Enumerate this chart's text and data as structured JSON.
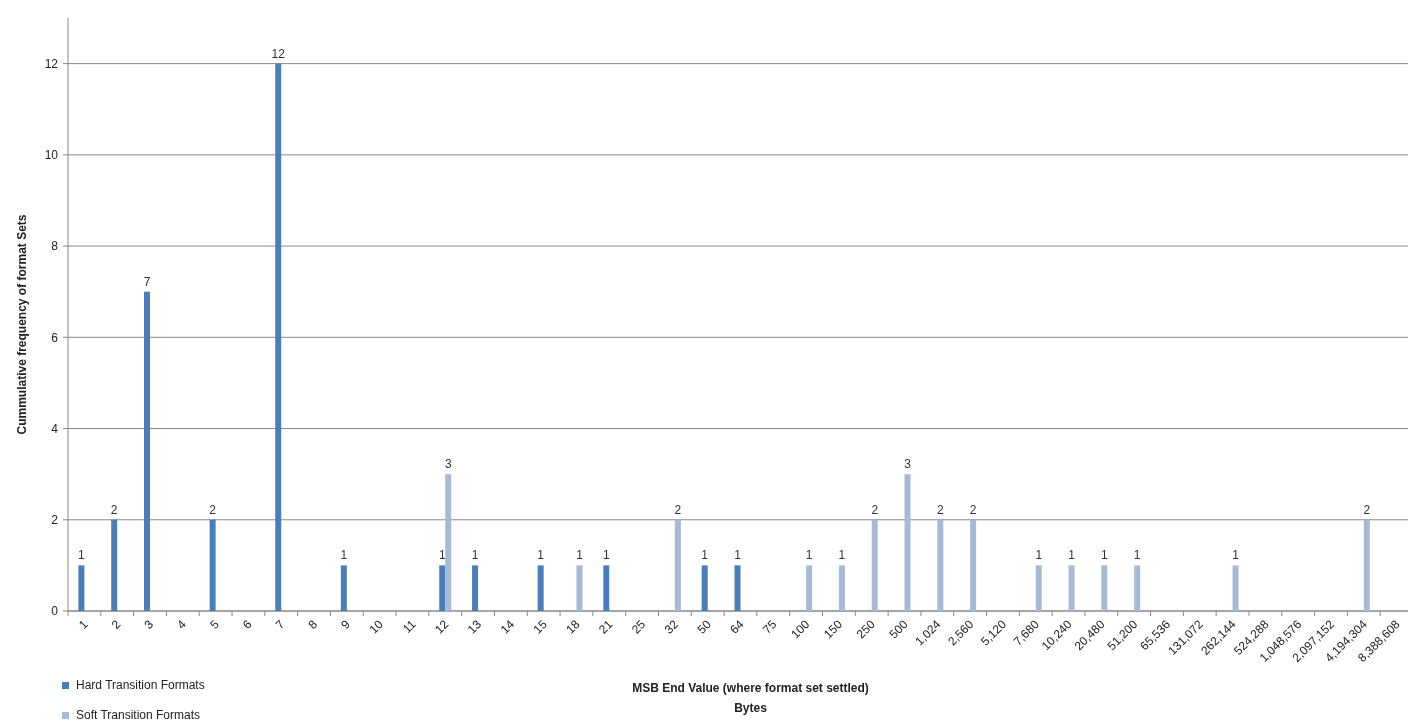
{
  "chart_data": {
    "type": "bar",
    "xlabel": "MSB End Value (where format set settled)\nBytes",
    "ylabel": "Cummulative frequency of format Sets",
    "categories": [
      "1",
      "2",
      "3",
      "4",
      "5",
      "6",
      "7",
      "8",
      "9",
      "10",
      "11",
      "12",
      "13",
      "14",
      "15",
      "18",
      "21",
      "25",
      "32",
      "50",
      "64",
      "75",
      "100",
      "150",
      "250",
      "500",
      "1,024",
      "2,560",
      "5,120",
      "7,680",
      "10,240",
      "20,480",
      "51,200",
      "65,536",
      "131,072",
      "262,144",
      "524,288",
      "1,048,576",
      "2,097,152",
      "4,194,304",
      "8,388,608"
    ],
    "series": [
      {
        "name": "Hard Transition Formats",
        "color": "#4a7ebb",
        "values": [
          1,
          2,
          7,
          null,
          2,
          null,
          12,
          null,
          1,
          null,
          null,
          1,
          1,
          null,
          1,
          null,
          1,
          null,
          null,
          1,
          1,
          null,
          null,
          null,
          null,
          null,
          null,
          null,
          null,
          null,
          null,
          null,
          null,
          null,
          null,
          null,
          null,
          null,
          null,
          null,
          null
        ]
      },
      {
        "name": "Soft Transition Formats",
        "color": "#a7b9d9",
        "values": [
          null,
          null,
          null,
          null,
          null,
          null,
          null,
          null,
          null,
          null,
          null,
          3,
          null,
          null,
          null,
          1,
          null,
          null,
          2,
          null,
          null,
          null,
          1,
          1,
          2,
          3,
          2,
          2,
          null,
          1,
          1,
          1,
          1,
          null,
          null,
          1,
          null,
          null,
          null,
          2,
          null
        ]
      }
    ],
    "ylim": [
      0,
      13
    ],
    "yticks": [
      0,
      2,
      4,
      6,
      8,
      10,
      12
    ],
    "grid": "y",
    "legend": "bottom left",
    "data_labels": true
  }
}
